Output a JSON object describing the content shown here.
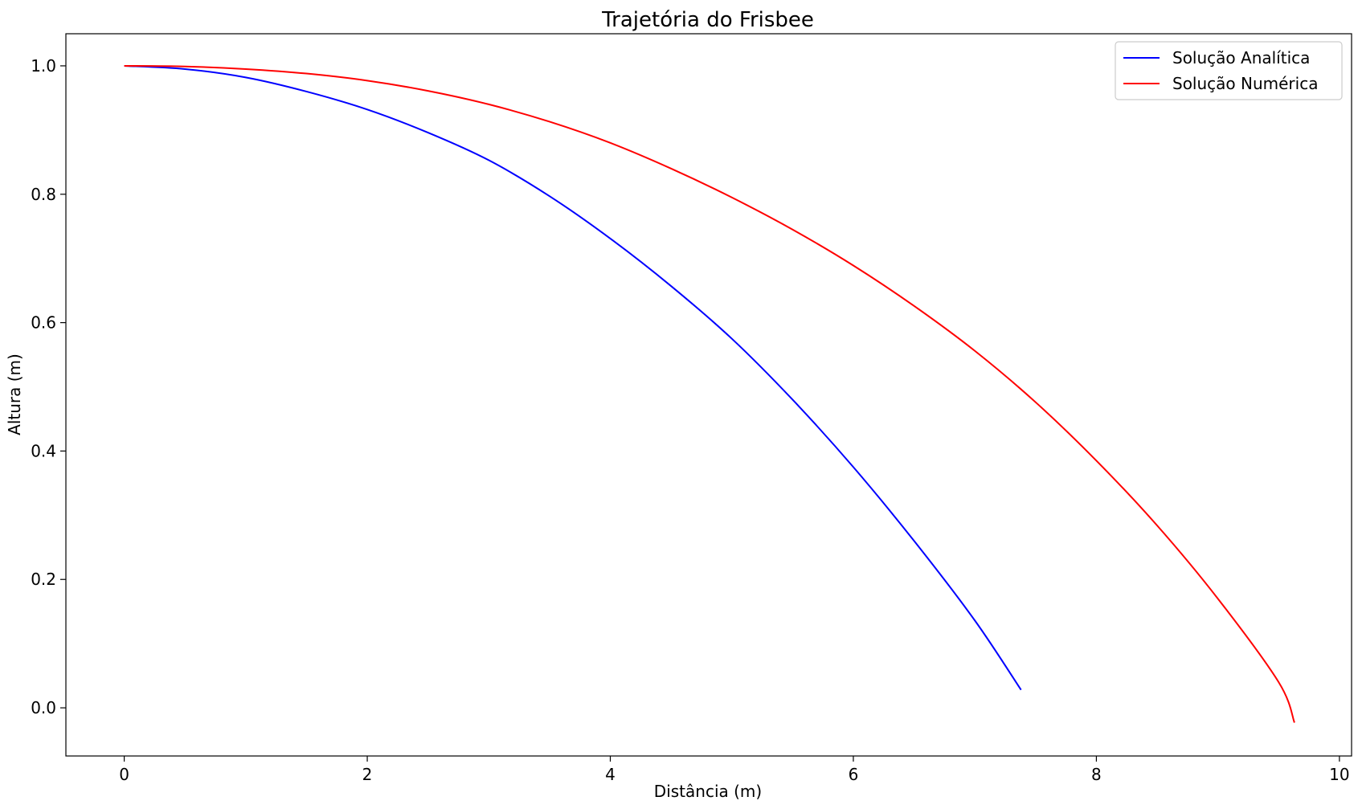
{
  "chart_data": {
    "type": "line",
    "title": "Trajetória do Frisbee",
    "xlabel": "Distância (m)",
    "ylabel": "Altura (m)",
    "xlim": [
      -0.48,
      10.1
    ],
    "ylim": [
      -0.075,
      1.05
    ],
    "xticks": [
      0,
      2,
      4,
      6,
      8,
      10
    ],
    "yticks": [
      0.0,
      0.2,
      0.4,
      0.6,
      0.8,
      1.0
    ],
    "xtick_labels": [
      "0",
      "2",
      "4",
      "6",
      "8",
      "10"
    ],
    "ytick_labels": [
      "0.0",
      "0.2",
      "0.4",
      "0.6",
      "0.8",
      "1.0"
    ],
    "grid": false,
    "legend_position": "top-right",
    "series": [
      {
        "name": "Solução Analítica",
        "color": "#0000ff",
        "x": [
          0,
          0.5,
          1.0,
          1.5,
          2.0,
          2.5,
          3.0,
          3.5,
          4.0,
          4.5,
          5.0,
          5.5,
          6.0,
          6.5,
          7.0,
          7.38
        ],
        "y": [
          1.0,
          0.995,
          0.982,
          0.96,
          0.932,
          0.896,
          0.853,
          0.797,
          0.731,
          0.657,
          0.575,
          0.48,
          0.375,
          0.26,
          0.136,
          0.028
        ]
      },
      {
        "name": "Solução Numérica",
        "color": "#ff0000",
        "x": [
          0,
          0.5,
          1.0,
          1.5,
          2.0,
          2.5,
          3.0,
          3.5,
          4.0,
          4.5,
          5.0,
          5.5,
          6.0,
          6.5,
          7.0,
          7.5,
          8.0,
          8.5,
          9.0,
          9.5,
          9.63
        ],
        "y": [
          1.0,
          0.999,
          0.995,
          0.988,
          0.977,
          0.961,
          0.94,
          0.913,
          0.88,
          0.84,
          0.795,
          0.745,
          0.689,
          0.626,
          0.556,
          0.476,
          0.385,
          0.284,
          0.17,
          0.04,
          -0.023
        ]
      }
    ]
  }
}
